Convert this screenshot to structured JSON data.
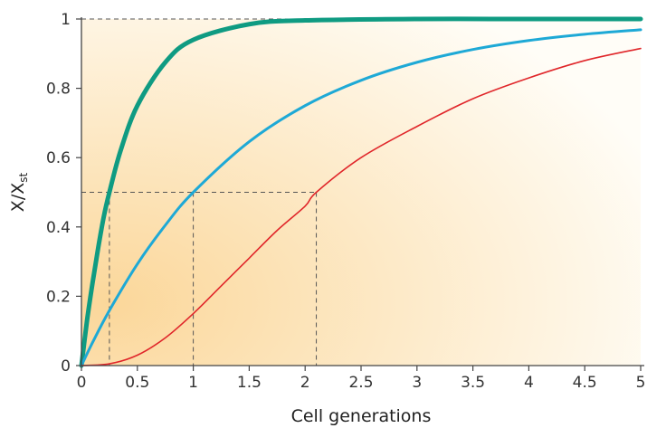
{
  "chart_data": {
    "type": "line",
    "xlabel": "Cell generations",
    "ylabel_main": "X/X",
    "ylabel_sub": "st",
    "xlim": [
      0,
      5
    ],
    "ylim": [
      0,
      1
    ],
    "x_ticks": [
      "0",
      "0.5",
      "1",
      "1.5",
      "2",
      "2.5",
      "3",
      "3.5",
      "4",
      "4.5",
      "5"
    ],
    "y_ticks": [
      "0",
      "0.2",
      "0.4",
      "0.6",
      "0.8",
      "1"
    ],
    "grid": false,
    "series": [
      {
        "color": "#0f9b82",
        "points": [
          [
            0,
            0
          ],
          [
            0.05,
            0.13
          ],
          [
            0.1,
            0.24
          ],
          [
            0.15,
            0.34
          ],
          [
            0.2,
            0.43
          ],
          [
            0.25,
            0.5
          ],
          [
            0.35,
            0.62
          ],
          [
            0.5,
            0.75
          ],
          [
            0.75,
            0.875
          ],
          [
            1,
            0.94
          ],
          [
            1.5,
            0.985
          ],
          [
            2,
            0.996
          ],
          [
            3,
            1.0
          ],
          [
            4,
            1.0
          ],
          [
            5,
            1.0
          ]
        ]
      },
      {
        "color": "#1ea9d6",
        "points": [
          [
            0,
            0
          ],
          [
            0.1,
            0.067
          ],
          [
            0.25,
            0.159
          ],
          [
            0.5,
            0.293
          ],
          [
            0.75,
            0.405
          ],
          [
            1,
            0.5
          ],
          [
            1.5,
            0.646
          ],
          [
            2,
            0.75
          ],
          [
            2.5,
            0.823
          ],
          [
            3,
            0.875
          ],
          [
            3.5,
            0.912
          ],
          [
            4,
            0.938
          ],
          [
            4.5,
            0.956
          ],
          [
            5,
            0.969
          ]
        ]
      },
      {
        "color": "#e0262a",
        "points": [
          [
            0,
            0
          ],
          [
            0.25,
            0.005
          ],
          [
            0.5,
            0.03
          ],
          [
            0.75,
            0.08
          ],
          [
            1,
            0.15
          ],
          [
            1.25,
            0.23
          ],
          [
            1.5,
            0.31
          ],
          [
            1.75,
            0.39
          ],
          [
            2,
            0.46
          ],
          [
            2.1,
            0.5
          ],
          [
            2.5,
            0.6
          ],
          [
            3,
            0.69
          ],
          [
            3.5,
            0.77
          ],
          [
            4,
            0.83
          ],
          [
            4.5,
            0.88
          ],
          [
            5,
            0.915
          ]
        ]
      }
    ],
    "guides": [
      {
        "x": 0.25,
        "y": 0.5
      },
      {
        "x": 1.0,
        "y": 0.5
      },
      {
        "x": 2.1,
        "y": 0.5
      }
    ],
    "reference_y": 1.0,
    "colors": {
      "background_glow": "#fbd79a",
      "background_edge": "#fffdf7"
    }
  }
}
